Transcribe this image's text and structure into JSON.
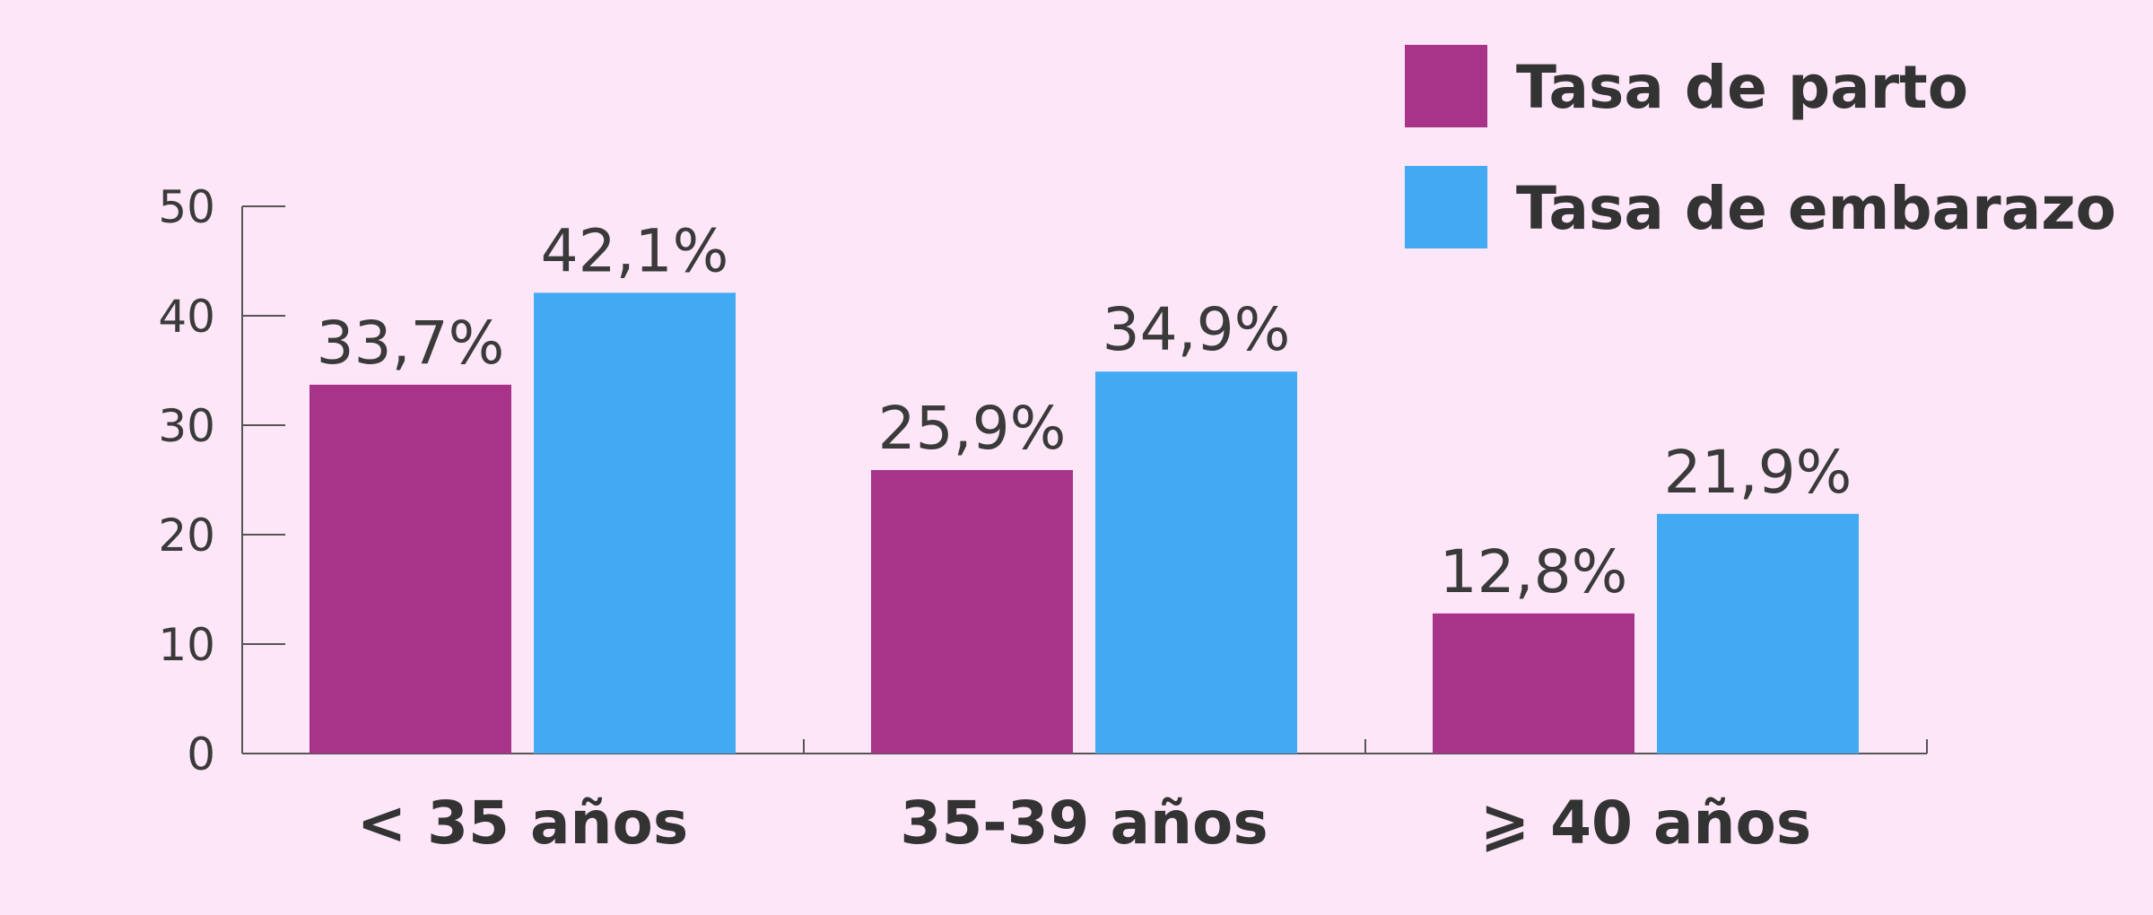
{
  "chart_data": {
    "type": "bar",
    "categories": [
      "< 35 años",
      "35-39 años",
      "⩾ 40 años"
    ],
    "series": [
      {
        "name": "Tasa de parto",
        "color": "#a8348a",
        "values": [
          33.7,
          25.9,
          12.8
        ],
        "labels": [
          "33,7%",
          "25,9%",
          "12,8%"
        ]
      },
      {
        "name": "Tasa de embarazo",
        "color": "#42a9f3",
        "values": [
          42.1,
          34.9,
          21.9
        ],
        "labels": [
          "42,1%",
          "34,9%",
          "21,9%"
        ]
      }
    ],
    "ylim": [
      0,
      50
    ],
    "yticks": [
      0,
      10,
      20,
      30,
      40,
      50
    ],
    "ytick_labels": [
      "0",
      "10",
      "20",
      "30",
      "40",
      "50"
    ],
    "legend_position": "top-right",
    "grid": false,
    "axis_color": "#555555",
    "background": "#fde6f8"
  }
}
